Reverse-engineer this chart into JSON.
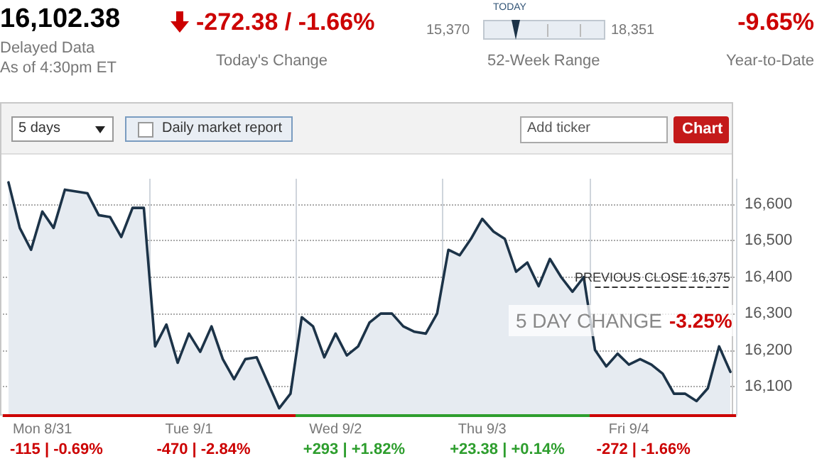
{
  "chart_data": {
    "type": "area",
    "title": "16,102.38",
    "categories": [
      null,
      null,
      null,
      "Mon 8/31",
      null,
      null,
      null,
      null,
      null,
      null,
      null,
      null,
      null,
      null,
      null,
      null,
      "Tue 9/1",
      null,
      null,
      null,
      null,
      null,
      null,
      null,
      null,
      null,
      null,
      null,
      null,
      "Wed 9/2",
      null,
      null,
      null,
      null,
      null,
      null,
      null,
      null,
      null,
      null,
      null,
      null,
      "Thu 9/3",
      null,
      null,
      null,
      null,
      null,
      null,
      null,
      null,
      null,
      null,
      null,
      null,
      "Fri 9/4",
      null,
      null,
      null,
      null,
      null,
      null,
      null,
      null,
      null
    ],
    "values": [
      16660,
      16535,
      16475,
      16580,
      16535,
      16640,
      16635,
      16630,
      16570,
      16565,
      16510,
      16590,
      16590,
      16210,
      16270,
      16165,
      16245,
      16195,
      16265,
      16175,
      16120,
      16175,
      16180,
      16110,
      16040,
      16080,
      16290,
      16265,
      16180,
      16245,
      16185,
      16210,
      16275,
      16300,
      16300,
      16265,
      16250,
      16245,
      16300,
      16475,
      16460,
      16505,
      16560,
      16525,
      16505,
      16415,
      16440,
      16375,
      16450,
      16400,
      16360,
      16400,
      16200,
      16155,
      16190,
      16160,
      16175,
      16160,
      16135,
      16080,
      16080,
      16060,
      16095,
      16210,
      16140
    ],
    "color": "#1c3348",
    "ylim": [
      16020,
      16670
    ],
    "yticks": [
      {
        "value": 16100,
        "label": "16,100"
      },
      {
        "value": 16200,
        "label": "16,200"
      },
      {
        "value": 16300,
        "label": "16,300"
      },
      {
        "value": 16400,
        "label": "16,400"
      },
      {
        "value": 16500,
        "label": "16,500"
      },
      {
        "value": 16600,
        "label": "16,600"
      }
    ],
    "grid": true,
    "marker": "none",
    "line_style": "solid",
    "ref_lines": [
      {
        "axis": "y",
        "value": 16375,
        "label": "PREVIOUS CLOSE 16,375",
        "color": "#333333",
        "line_style": "dashed"
      }
    ],
    "annotations": [
      "Delayed Data",
      "As of 4:30pm ET",
      "-272.38 / -1.66%",
      "Today's Change",
      "15,370",
      "TODAY",
      "18,351",
      "52-Week Range",
      "-9.65%",
      "Year-to-Date",
      "5 days",
      "Daily market report",
      "Add ticker",
      "Chart",
      "-115 | -0.69%",
      "-470 | -2.84%",
      "+293 | +1.82%",
      "+23.38 | +0.14%",
      "-272 | -1.66%",
      "5 DAY CHANGE",
      "-3.25%"
    ]
  }
}
